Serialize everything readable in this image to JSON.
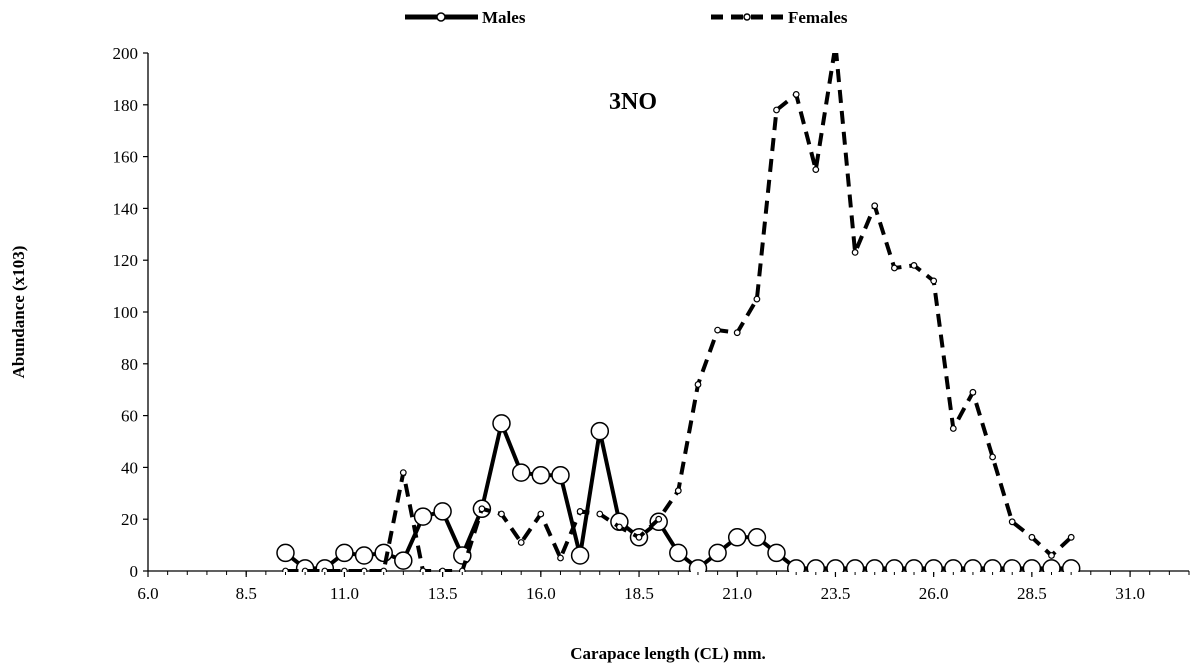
{
  "chart_data": {
    "type": "line",
    "annotation": "3NO",
    "xlabel": "Carapace length (CL) mm.",
    "ylabel": "Abundance (x103)",
    "xlim": [
      6.0,
      32.5
    ],
    "ylim": [
      0,
      200
    ],
    "x_ticks": [
      "6.0",
      "8.5",
      "11.0",
      "13.5",
      "16.0",
      "18.5",
      "21.0",
      "23.5",
      "26.0",
      "28.5",
      "31.0"
    ],
    "y_ticks": [
      "0",
      "20",
      "40",
      "60",
      "80",
      "100",
      "120",
      "140",
      "160",
      "180",
      "200"
    ],
    "legend_position": "top-center",
    "grid": false,
    "series": [
      {
        "name": "Males",
        "style": "solid",
        "color": "#000000",
        "x": [
          9.5,
          10.0,
          10.5,
          11.0,
          11.5,
          12.0,
          12.5,
          13.0,
          13.5,
          14.0,
          14.5,
          15.0,
          15.5,
          16.0,
          16.5,
          17.0,
          17.5,
          18.0,
          18.5,
          19.0,
          19.5,
          20.0,
          20.5,
          21.0,
          21.5,
          22.0,
          22.5,
          23.0,
          23.5,
          24.0,
          24.5,
          25.0,
          25.5,
          26.0,
          26.5,
          27.0,
          27.5,
          28.0,
          28.5,
          29.0,
          29.5
        ],
        "y": [
          7,
          1,
          1,
          7,
          6,
          7,
          4,
          21,
          23,
          6,
          24,
          57,
          38,
          37,
          37,
          6,
          54,
          19,
          13,
          19,
          7,
          1,
          7,
          13,
          13,
          7,
          1,
          1,
          1,
          1,
          1,
          1,
          1,
          1,
          1,
          1,
          1,
          1,
          1,
          1,
          1
        ]
      },
      {
        "name": "Females",
        "style": "dashed",
        "color": "#000000",
        "x": [
          9.5,
          10.0,
          10.5,
          11.0,
          11.5,
          12.0,
          12.5,
          13.0,
          13.5,
          14.0,
          14.5,
          15.0,
          15.5,
          16.0,
          16.5,
          17.0,
          17.5,
          18.0,
          18.5,
          19.0,
          19.5,
          20.0,
          20.5,
          21.0,
          21.5,
          22.0,
          22.5,
          23.0,
          23.5,
          24.0,
          24.5,
          25.0,
          25.5,
          26.0,
          26.5,
          27.0,
          27.5,
          28.0,
          28.5,
          29.0,
          29.5
        ],
        "y": [
          0,
          0,
          0,
          0,
          0,
          0,
          38,
          0,
          0,
          0,
          24,
          22,
          11,
          22,
          5,
          23,
          22,
          17,
          13,
          20,
          31,
          72,
          93,
          92,
          105,
          178,
          184,
          155,
          203,
          123,
          141,
          117,
          118,
          112,
          55,
          69,
          44,
          19,
          13,
          6,
          13
        ]
      }
    ]
  }
}
